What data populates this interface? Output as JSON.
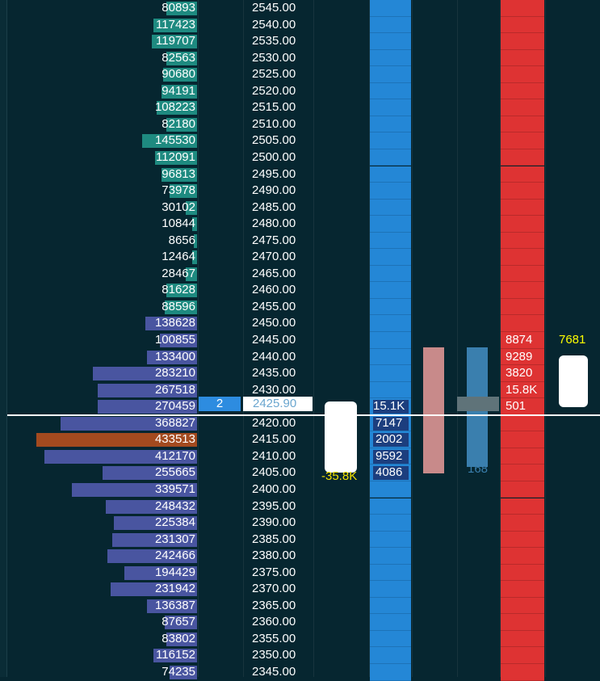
{
  "colors": {
    "background": "#062630",
    "volume_bar_upper": "#1e8a80",
    "volume_bar_lower": "#4955a0",
    "volume_bar_poc": "#a34a1f",
    "bid_column": "#2487d6",
    "ask_column": "#de3333",
    "delta_text": "#ffff00",
    "cum_delta_text": "#f3e000"
  },
  "ladder": {
    "rows": [
      {
        "price": "2545.00",
        "volume": "80893",
        "level": 0.19
      },
      {
        "price": "2540.00",
        "volume": "117423",
        "level": 0.27
      },
      {
        "price": "2535.00",
        "volume": "119707",
        "level": 0.28
      },
      {
        "price": "2530.00",
        "volume": "82563",
        "level": 0.19
      },
      {
        "price": "2525.00",
        "volume": "90680",
        "level": 0.21
      },
      {
        "price": "2520.00",
        "volume": "94191",
        "level": 0.22
      },
      {
        "price": "2515.00",
        "volume": "108223",
        "level": 0.25
      },
      {
        "price": "2510.00",
        "volume": "82180",
        "level": 0.19
      },
      {
        "price": "2505.00",
        "volume": "145530",
        "level": 0.34
      },
      {
        "price": "2500.00",
        "volume": "112091",
        "level": 0.26
      },
      {
        "price": "2495.00",
        "volume": "96813",
        "level": 0.22
      },
      {
        "price": "2490.00",
        "volume": "73978",
        "level": 0.17
      },
      {
        "price": "2485.00",
        "volume": "30102",
        "level": 0.07
      },
      {
        "price": "2480.00",
        "volume": "10844",
        "level": 0.03
      },
      {
        "price": "2475.00",
        "volume": "8656",
        "level": 0.02
      },
      {
        "price": "2470.00",
        "volume": "12464",
        "level": 0.03
      },
      {
        "price": "2465.00",
        "volume": "28467",
        "level": 0.07
      },
      {
        "price": "2460.00",
        "volume": "81628",
        "level": 0.19
      },
      {
        "price": "2455.00",
        "volume": "88596",
        "level": 0.2
      },
      {
        "price": "2450.00",
        "volume": "138628",
        "level": 0.32
      },
      {
        "price": "2445.00",
        "volume": "100855",
        "level": 0.23,
        "ask": "8874",
        "delta": "7681"
      },
      {
        "price": "2440.00",
        "volume": "133400",
        "level": 0.31,
        "ask": "9289"
      },
      {
        "price": "2435.00",
        "volume": "283210",
        "level": 0.65,
        "ask": "3820"
      },
      {
        "price": "2430.00",
        "volume": "267518",
        "level": 0.62,
        "ask": "15.8K"
      },
      {
        "price": "2425.00",
        "volume": "270459",
        "level": 0.62,
        "ask": "501",
        "bid_size": "15.1K"
      },
      {
        "price": "2420.00",
        "volume": "368827",
        "level": 0.85,
        "bid": "7147"
      },
      {
        "price": "2415.00",
        "volume": "433513",
        "level": 1.0,
        "bid": "2002",
        "poc": true
      },
      {
        "price": "2410.00",
        "volume": "412170",
        "level": 0.95,
        "bid": "9592"
      },
      {
        "price": "2405.00",
        "volume": "255665",
        "level": 0.59,
        "bid": "4086"
      },
      {
        "price": "2400.00",
        "volume": "339571",
        "level": 0.78
      },
      {
        "price": "2395.00",
        "volume": "248432",
        "level": 0.57
      },
      {
        "price": "2390.00",
        "volume": "225384",
        "level": 0.52
      },
      {
        "price": "2385.00",
        "volume": "231307",
        "level": 0.53
      },
      {
        "price": "2380.00",
        "volume": "242466",
        "level": 0.56
      },
      {
        "price": "2375.00",
        "volume": "194429",
        "level": 0.45
      },
      {
        "price": "2370.00",
        "volume": "231942",
        "level": 0.54
      },
      {
        "price": "2365.00",
        "volume": "136387",
        "level": 0.31
      },
      {
        "price": "2360.00",
        "volume": "87657",
        "level": 0.2
      },
      {
        "price": "2355.00",
        "volume": "83802",
        "level": 0.19
      },
      {
        "price": "2350.00",
        "volume": "116152",
        "level": 0.27
      },
      {
        "price": "2345.00",
        "volume": "74235",
        "level": 0.17
      }
    ],
    "position_qty": "2",
    "last_price": "2425.90",
    "cumulative_delta": "-35.8K",
    "trade_bubble_tail": "168"
  }
}
